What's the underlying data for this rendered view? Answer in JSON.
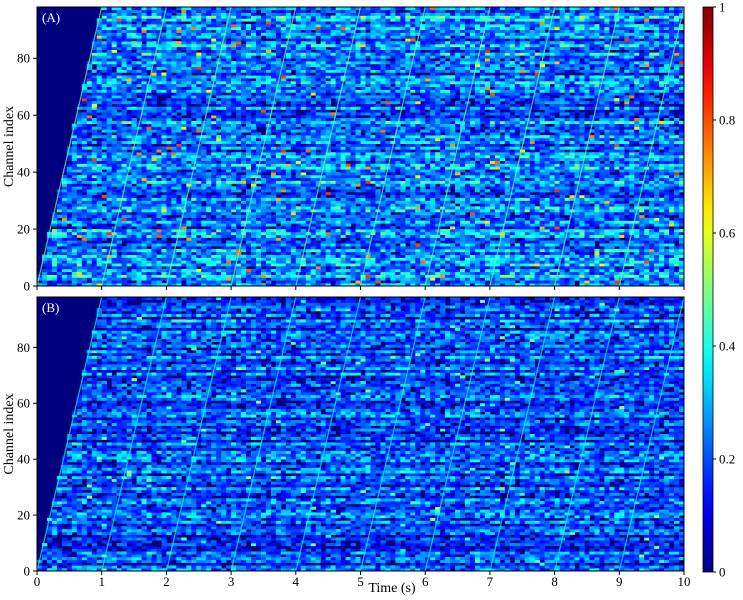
{
  "chart_data": [
    {
      "type": "heatmap",
      "panel_label": "(A)",
      "xlabel": "",
      "ylabel": "Channel index",
      "xlim": [
        0,
        10
      ],
      "ylim": [
        0,
        98
      ],
      "x_ticks": [
        0,
        1,
        2,
        3,
        4,
        5,
        6,
        7,
        8,
        9,
        10
      ],
      "y_ticks": [
        0,
        20,
        40,
        60,
        80
      ],
      "x_tick_labels_shown": false,
      "description_values": {
        "sweep_start_times_s": [
          0,
          1,
          2,
          3,
          4,
          5,
          6,
          7,
          8,
          9
        ],
        "sweep_duration_s": 1.0,
        "channels": 98,
        "peak_intensity_approx": 0.8,
        "typical_intensity_approx": 0.3
      }
    },
    {
      "type": "heatmap",
      "panel_label": "(B)",
      "xlabel": "Time (s)",
      "ylabel": "Channel index",
      "xlim": [
        0,
        10
      ],
      "ylim": [
        0,
        98
      ],
      "x_ticks": [
        0,
        1,
        2,
        3,
        4,
        5,
        6,
        7,
        8,
        9,
        10
      ],
      "x_tick_labels": [
        "0",
        "1",
        "2",
        "3",
        "4",
        "5",
        "6",
        "7",
        "8",
        "9",
        "10"
      ],
      "y_ticks": [
        0,
        20,
        40,
        60,
        80
      ],
      "x_tick_labels_shown": true,
      "description_values": {
        "sweep_start_times_s": [
          0,
          1,
          2,
          3,
          4,
          5,
          6,
          7,
          8,
          9
        ],
        "sweep_duration_s": 1.0,
        "channels": 98,
        "peak_intensity_approx": 0.5,
        "typical_intensity_approx": 0.25
      }
    }
  ],
  "colorbar": {
    "colormap": "jet",
    "min": 0,
    "max": 1,
    "ticks": [
      0,
      0.2,
      0.4,
      0.6,
      0.8,
      1
    ],
    "tick_labels": [
      "0",
      "0.2",
      "0.4",
      "0.6",
      "0.8",
      "1"
    ]
  },
  "colors": {
    "background_low": "#00007f",
    "axis": "#000000"
  }
}
